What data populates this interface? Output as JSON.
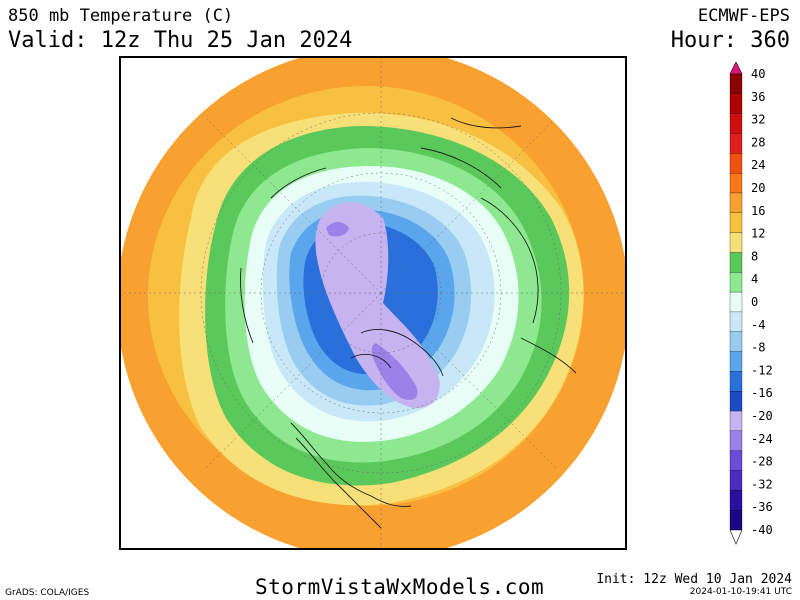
{
  "header": {
    "title": "850 mb Temperature (C)",
    "valid": "Valid: 12z Thu 25 Jan 2024",
    "model": "ECMWF-EPS",
    "hour": "Hour: 360"
  },
  "footer": {
    "website": "StormVistaWxModels.com",
    "credit": "GrADS: COLA/IGES",
    "init": "Init: 12z Wed 10 Jan 2024",
    "timestamp": "2024-01-10-19:41 UTC"
  },
  "colorbar": {
    "labels": [
      "40",
      "36",
      "32",
      "28",
      "24",
      "20",
      "16",
      "12",
      "8",
      "4",
      "0",
      "-4",
      "-8",
      "-12",
      "-16",
      "-20",
      "-24",
      "-28",
      "-32",
      "-36",
      "-40"
    ],
    "colors": [
      "#e0147e",
      "#8b0000",
      "#b30000",
      "#d01010",
      "#e02020",
      "#f05010",
      "#f87818",
      "#f8a030",
      "#f8c040",
      "#f8e078",
      "#5ac85a",
      "#8ee890",
      "#e8fff8",
      "#c8e8f8",
      "#98ccf0",
      "#5aa6ec",
      "#2a70dc",
      "#1e4cc8",
      "#c6b4f0",
      "#9a82e8",
      "#6a4cd8",
      "#4a2cc0",
      "#2a10a0",
      "#1a0880",
      "#ffffff"
    ]
  },
  "map": {
    "projection": "north-polar-stereographic",
    "field": "850 mb temperature",
    "band_colors": {
      "orange": "#f8a030",
      "yellow": "#f8e078",
      "green": "#5ac85a",
      "light_green": "#8ee890",
      "pale": "#e8fff8",
      "light_blue": "#c8e8f8",
      "mid_blue": "#98ccf0",
      "blue": "#5aa6ec",
      "dark_blue": "#2a70dc",
      "lavender": "#c6b4f0",
      "purple": "#9a82e8"
    }
  }
}
